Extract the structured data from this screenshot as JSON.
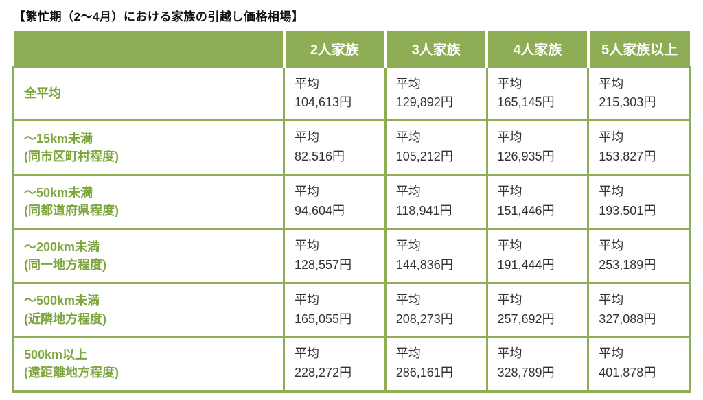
{
  "page_title": "【繁忙期（2〜4月）における家族の引越し価格相場】",
  "colors": {
    "table_green": "#8fad55",
    "label_green": "#7ea63e",
    "text_dark": "#333333",
    "header_text": "#ffffff"
  },
  "table": {
    "avg_label": "平均",
    "col_headers": [
      "2人家族",
      "3人家族",
      "4人家族",
      "5人家族以上"
    ],
    "rows": [
      {
        "label": "全平均",
        "sub": "",
        "values": [
          "104,613円",
          "129,892円",
          "165,145円",
          "215,303円"
        ]
      },
      {
        "label": "〜15km未満",
        "sub": "(同市区町村程度)",
        "values": [
          "82,516円",
          "105,212円",
          "126,935円",
          "153,827円"
        ]
      },
      {
        "label": "〜50km未満",
        "sub": "(同都道府県程度)",
        "values": [
          "94,604円",
          "118,941円",
          "151,446円",
          "193,501円"
        ]
      },
      {
        "label": "〜200km未満",
        "sub": "(同一地方程度)",
        "values": [
          "128,557円",
          "144,836円",
          "191,444円",
          "253,189円"
        ]
      },
      {
        "label": "〜500km未満",
        "sub": "(近隣地方程度)",
        "values": [
          "165,055円",
          "208,273円",
          "257,692円",
          "327,088円"
        ]
      },
      {
        "label": "500km以上",
        "sub": "(遠距離地方程度)",
        "values": [
          "228,272円",
          "286,161円",
          "328,789円",
          "401,878円"
        ]
      }
    ]
  },
  "chart_data": {
    "type": "table",
    "title": "【繁忙期（2〜4月）における家族の引越し価格相場】",
    "columns": [
      "",
      "2人家族",
      "3人家族",
      "4人家族",
      "5人家族以上"
    ],
    "unit": "円",
    "value_prefix_label": "平均",
    "rows": [
      {
        "label": "全平均",
        "values": [
          104613,
          129892,
          165145,
          215303
        ]
      },
      {
        "label": "〜15km未満 (同市区町村程度)",
        "values": [
          82516,
          105212,
          126935,
          153827
        ]
      },
      {
        "label": "〜50km未満 (同都道府県程度)",
        "values": [
          94604,
          118941,
          151446,
          193501
        ]
      },
      {
        "label": "〜200km未満 (同一地方程度)",
        "values": [
          128557,
          144836,
          191444,
          253189
        ]
      },
      {
        "label": "〜500km未満 (近隣地方程度)",
        "values": [
          165055,
          208273,
          257692,
          327088
        ]
      },
      {
        "label": "500km以上 (遠距離地方程度)",
        "values": [
          228272,
          286161,
          328789,
          401878
        ]
      }
    ]
  }
}
